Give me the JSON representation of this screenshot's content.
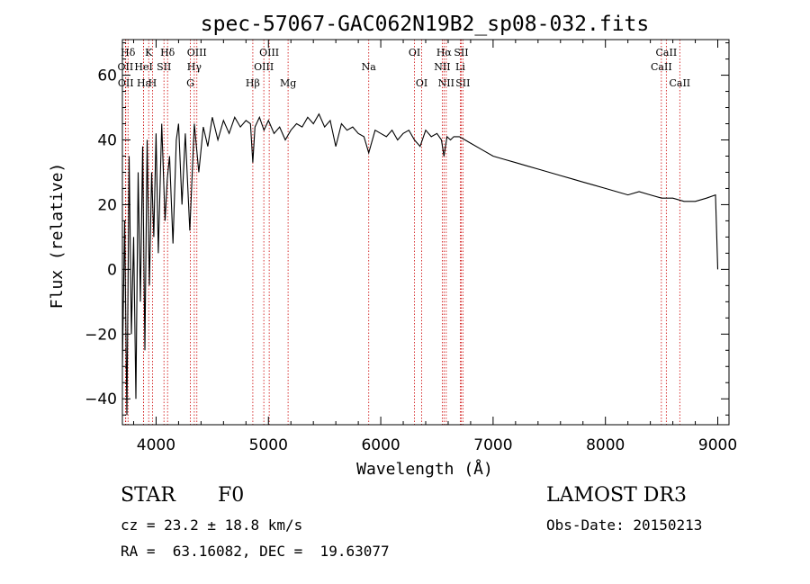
{
  "chart_data": {
    "type": "line",
    "title": "spec-57067-GAC062N19B2_sp08-032.fits",
    "xlabel": "Wavelength (Å)",
    "ylabel": "Flux (relative)",
    "xlim": [
      3700,
      9100
    ],
    "ylim": [
      -48,
      71
    ],
    "x_ticks": [
      4000,
      5000,
      6000,
      7000,
      8000,
      9000
    ],
    "x_tick_labels": [
      "4000",
      "5000",
      "6000",
      "7000",
      "8000",
      "9000"
    ],
    "y_ticks": [
      -40,
      -20,
      0,
      20,
      40,
      60
    ],
    "y_tick_labels": [
      "−40",
      "−20",
      "0",
      "20",
      "40",
      "60"
    ],
    "series": [
      {
        "name": "flux",
        "x": [
          3700,
          3720,
          3740,
          3760,
          3780,
          3800,
          3820,
          3840,
          3860,
          3880,
          3900,
          3920,
          3940,
          3960,
          3980,
          4000,
          4020,
          4050,
          4080,
          4100,
          4120,
          4150,
          4180,
          4200,
          4230,
          4260,
          4300,
          4340,
          4380,
          4420,
          4460,
          4500,
          4550,
          4600,
          4650,
          4700,
          4750,
          4800,
          4840,
          4861,
          4880,
          4920,
          4960,
          5000,
          5050,
          5100,
          5150,
          5200,
          5250,
          5300,
          5350,
          5400,
          5450,
          5500,
          5550,
          5600,
          5650,
          5700,
          5750,
          5800,
          5850,
          5893,
          5950,
          6000,
          6050,
          6100,
          6150,
          6200,
          6250,
          6300,
          6350,
          6400,
          6450,
          6500,
          6540,
          6563,
          6590,
          6620,
          6650,
          6700,
          6750,
          6800,
          6900,
          7000,
          7100,
          7200,
          7300,
          7400,
          7500,
          7600,
          7700,
          7800,
          7900,
          8000,
          8100,
          8200,
          8300,
          8400,
          8500,
          8600,
          8700,
          8800,
          8900,
          8980,
          9000
        ],
        "values": [
          -30,
          15,
          -45,
          35,
          -20,
          10,
          -40,
          30,
          -10,
          38,
          -25,
          40,
          -5,
          30,
          10,
          42,
          5,
          45,
          15,
          28,
          35,
          8,
          40,
          45,
          20,
          42,
          12,
          45,
          30,
          44,
          38,
          47,
          40,
          46,
          42,
          47,
          44,
          46,
          45,
          33,
          44,
          47,
          43,
          46,
          42,
          44,
          40,
          43,
          45,
          44,
          47,
          45,
          48,
          44,
          46,
          38,
          45,
          43,
          44,
          42,
          41,
          36,
          43,
          42,
          41,
          43,
          40,
          42,
          43,
          40,
          38,
          43,
          41,
          42,
          40,
          35,
          41,
          40,
          41,
          41,
          40,
          39,
          37,
          35,
          34,
          33,
          32,
          31,
          30,
          29,
          28,
          27,
          26,
          25,
          24,
          23,
          24,
          23,
          22,
          22,
          21,
          21,
          22,
          23,
          0
        ]
      }
    ],
    "spectral_lines": [
      {
        "label": "Hδ",
        "x": 3750,
        "row": 1
      },
      {
        "label": "OII",
        "x": 3727,
        "row": 2
      },
      {
        "label": "OII",
        "x": 3730,
        "row": 3
      },
      {
        "label": "K",
        "x": 3934,
        "row": 1
      },
      {
        "label": "HeI",
        "x": 3889,
        "row": 2
      },
      {
        "label": "Hε",
        "x": 3889,
        "row": 3
      },
      {
        "label": "SII",
        "x": 4070,
        "row": 2
      },
      {
        "label": "H",
        "x": 3968,
        "row": 3
      },
      {
        "label": "Hδ",
        "x": 4102,
        "row": 1
      },
      {
        "label": "OIII",
        "x": 4363,
        "row": 1
      },
      {
        "label": "Hγ",
        "x": 4340,
        "row": 2
      },
      {
        "label": "G",
        "x": 4305,
        "row": 3
      },
      {
        "label": "Hβ",
        "x": 4861,
        "row": 3
      },
      {
        "label": "OIII",
        "x": 5007,
        "row": 1
      },
      {
        "label": "OIII",
        "x": 4959,
        "row": 2
      },
      {
        "label": "Mg",
        "x": 5175,
        "row": 3
      },
      {
        "label": "Na",
        "x": 5893,
        "row": 2
      },
      {
        "label": "OI",
        "x": 6300,
        "row": 1
      },
      {
        "label": "OI",
        "x": 6364,
        "row": 3
      },
      {
        "label": "Hα",
        "x": 6563,
        "row": 1
      },
      {
        "label": "SII",
        "x": 6716,
        "row": 1
      },
      {
        "label": "NII",
        "x": 6548,
        "row": 2
      },
      {
        "label": "Li",
        "x": 6708,
        "row": 2
      },
      {
        "label": "NII",
        "x": 6583,
        "row": 3
      },
      {
        "label": "SII",
        "x": 6731,
        "row": 3
      },
      {
        "label": "CaII",
        "x": 8542,
        "row": 1
      },
      {
        "label": "CaII",
        "x": 8498,
        "row": 2
      },
      {
        "label": "CaII",
        "x": 8662,
        "row": 3
      }
    ],
    "colors": {
      "axis": "#000000",
      "spectrum": "#000000",
      "line_marker": "#cc0000"
    }
  },
  "info": {
    "class_label": "STAR",
    "subclass_label": "F0",
    "survey": "LAMOST DR3",
    "cz": "cz = 23.2 ± 18.8 km/s",
    "obs_date": "Obs-Date: 20150213",
    "radec": "RA =  63.16082, DEC =  19.63077"
  }
}
